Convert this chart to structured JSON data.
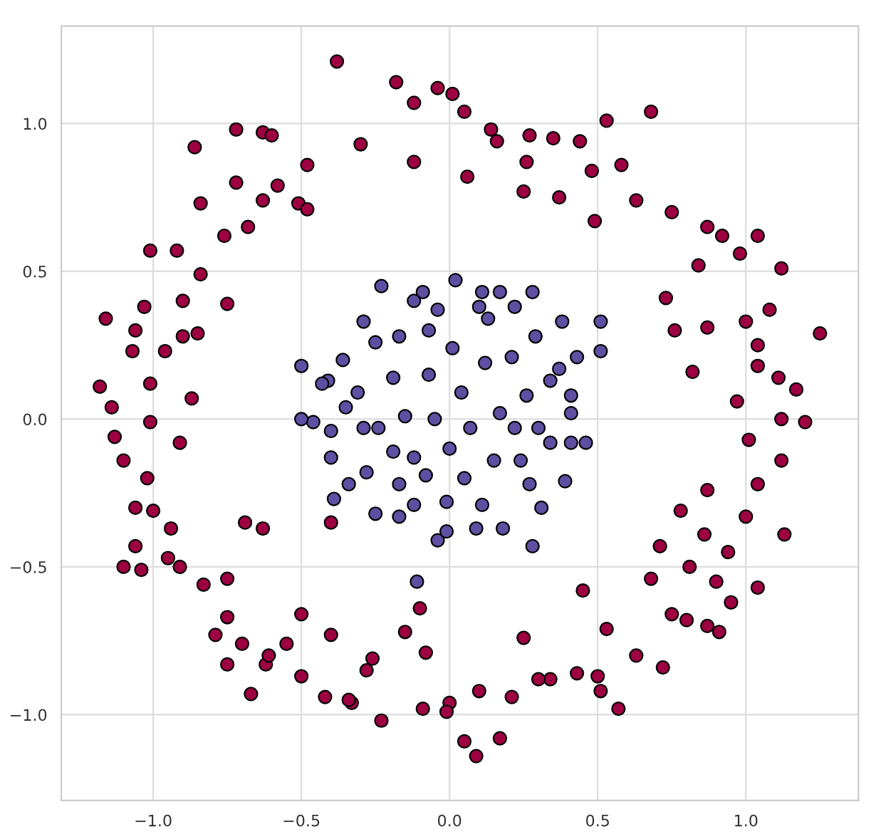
{
  "chart_data": {
    "type": "scatter",
    "xlim": [
      -1.31,
      1.38
    ],
    "ylim": [
      -1.29,
      1.33
    ],
    "xticks": [
      {
        "value": -1.0,
        "label": "−1.0"
      },
      {
        "value": -0.5,
        "label": "−0.5"
      },
      {
        "value": 0.0,
        "label": "0.0"
      },
      {
        "value": 0.5,
        "label": "0.5"
      },
      {
        "value": 1.0,
        "label": "1.0"
      }
    ],
    "yticks": [
      {
        "value": -1.0,
        "label": "−1.0"
      },
      {
        "value": -0.5,
        "label": "−0.5"
      },
      {
        "value": 0.0,
        "label": "0.0"
      },
      {
        "value": 0.5,
        "label": "0.5"
      },
      {
        "value": 1.0,
        "label": "1.0"
      }
    ],
    "grid": true,
    "marker": "circle",
    "series": [
      {
        "color": "#9e0142",
        "x": [
          -0.38,
          -0.18,
          -0.12,
          -0.86,
          -0.72,
          -0.63,
          -0.6,
          -0.04,
          0.01,
          0.05,
          0.14,
          0.16,
          0.27,
          0.35,
          0.44,
          0.53,
          0.68,
          0.58,
          0.48,
          0.26,
          0.06,
          -0.12,
          -0.3,
          -0.48,
          -0.58,
          -0.72,
          -0.84,
          -0.92,
          -1.01,
          -1.03,
          -1.06,
          -1.07,
          -1.16,
          -1.18,
          -1.14,
          -1.13,
          -1.1,
          -1.06,
          -1.06,
          -1.04,
          -1.1,
          -0.95,
          -0.94,
          -1.0,
          -1.02,
          -1.01,
          -1.01,
          -0.96,
          -0.9,
          -0.9,
          -0.84,
          -0.76,
          -0.68,
          -0.63,
          -0.51,
          -0.48,
          -0.75,
          -0.85,
          -0.91,
          -0.87,
          -0.91,
          -0.83,
          -0.75,
          -0.79,
          -0.75,
          -0.67,
          -0.62,
          -0.55,
          -0.5,
          -0.42,
          -0.33,
          -0.28,
          -0.23,
          -0.09,
          0.0,
          0.05,
          0.09,
          0.17,
          0.21,
          0.25,
          0.34,
          0.43,
          0.51,
          0.57,
          0.63,
          0.72,
          0.75,
          0.8,
          0.87,
          0.91,
          0.95,
          1.04,
          1.13,
          0.94,
          0.86,
          0.81,
          0.87,
          1.0,
          1.04,
          1.01,
          1.12,
          1.12,
          1.2,
          1.17,
          1.11,
          1.04,
          0.97,
          1.04,
          1.0,
          1.08,
          1.12,
          1.04,
          0.98,
          0.92,
          0.84,
          0.73,
          0.76,
          0.82,
          0.87,
          1.25,
          0.87,
          0.75,
          0.63,
          0.49,
          0.37,
          0.25,
          -0.4,
          -0.63,
          -0.69,
          -0.75,
          -0.01,
          -0.08,
          -0.15,
          -0.4,
          -0.5,
          0.68,
          0.71,
          0.78,
          0.5,
          0.9,
          0.53,
          0.45,
          0.3,
          0.1,
          -0.26,
          -0.34,
          -0.61,
          -0.7,
          -0.1
        ],
        "values": [
          1.21,
          1.14,
          1.07,
          0.92,
          0.98,
          0.97,
          0.96,
          1.12,
          1.1,
          1.04,
          0.98,
          0.94,
          0.96,
          0.95,
          0.94,
          1.01,
          1.04,
          0.86,
          0.84,
          0.87,
          0.82,
          0.87,
          0.93,
          0.86,
          0.79,
          0.8,
          0.73,
          0.57,
          0.57,
          0.38,
          0.3,
          0.23,
          0.34,
          0.11,
          0.04,
          -0.06,
          -0.14,
          -0.3,
          -0.43,
          -0.51,
          -0.5,
          -0.47,
          -0.37,
          -0.31,
          -0.2,
          -0.01,
          0.12,
          0.23,
          0.28,
          0.4,
          0.49,
          0.62,
          0.65,
          0.74,
          0.73,
          0.71,
          0.39,
          0.29,
          -0.08,
          0.07,
          -0.5,
          -0.56,
          -0.54,
          -0.73,
          -0.83,
          -0.93,
          -0.83,
          -0.76,
          -0.87,
          -0.94,
          -0.96,
          -0.85,
          -1.02,
          -0.98,
          -0.96,
          -1.09,
          -1.14,
          -1.08,
          -0.94,
          -0.74,
          -0.88,
          -0.86,
          -0.92,
          -0.98,
          -0.8,
          -0.84,
          -0.66,
          -0.68,
          -0.7,
          -0.72,
          -0.62,
          -0.57,
          -0.39,
          -0.45,
          -0.39,
          -0.5,
          -0.24,
          -0.33,
          -0.22,
          -0.07,
          -0.14,
          0.0,
          -0.01,
          0.1,
          0.14,
          0.18,
          0.06,
          0.25,
          0.33,
          0.37,
          0.51,
          0.62,
          0.56,
          0.62,
          0.52,
          0.41,
          0.3,
          0.16,
          0.31,
          0.29,
          0.65,
          0.7,
          0.74,
          0.67,
          0.75,
          0.77,
          -0.35,
          -0.37,
          -0.35,
          -0.67,
          -0.99,
          -0.79,
          -0.72,
          -0.73,
          -0.66,
          -0.54,
          -0.43,
          -0.31,
          -0.87,
          -0.55,
          -0.71,
          -0.58,
          -0.88,
          -0.92,
          -0.81,
          -0.95,
          -0.8,
          -0.76,
          -0.64
        ]
      },
      {
        "color": "#5e4fa2",
        "x": [
          0.02,
          0.11,
          0.17,
          -0.09,
          -0.23,
          -0.36,
          -0.41,
          -0.46,
          -0.5,
          -0.5,
          -0.4,
          -0.39,
          -0.25,
          -0.17,
          -0.04,
          -0.01,
          0.09,
          0.18,
          0.28,
          0.31,
          0.39,
          0.41,
          0.41,
          0.37,
          0.41,
          0.51,
          0.51,
          0.46,
          0.38,
          0.28,
          0.13,
          -0.07,
          -0.17,
          -0.25,
          -0.31,
          -0.29,
          -0.28,
          -0.19,
          -0.15,
          -0.07,
          0.01,
          0.12,
          0.21,
          0.29,
          0.26,
          0.22,
          0.15,
          0.05,
          -0.08,
          -0.17,
          -0.24,
          -0.05,
          0.07,
          0.17,
          0.24,
          0.34,
          0.27,
          0.11,
          -0.01,
          -0.12,
          -0.34,
          -0.4,
          -0.19,
          0.04,
          0.1,
          -0.12,
          -0.04,
          0.34,
          0.3,
          0.43,
          -0.12,
          0.0,
          -0.29,
          0.22,
          -0.35,
          -0.43,
          -0.11
        ],
        "values": [
          0.47,
          0.43,
          0.43,
          0.43,
          0.45,
          0.2,
          0.13,
          -0.01,
          0.0,
          0.18,
          -0.13,
          -0.27,
          -0.32,
          -0.33,
          -0.41,
          -0.38,
          -0.37,
          -0.37,
          -0.43,
          -0.3,
          -0.21,
          -0.08,
          0.08,
          0.17,
          0.02,
          0.33,
          0.23,
          -0.08,
          0.33,
          0.43,
          0.34,
          0.3,
          0.28,
          0.26,
          0.09,
          -0.03,
          -0.18,
          -0.11,
          0.01,
          0.15,
          0.24,
          0.19,
          0.21,
          0.28,
          0.08,
          -0.03,
          -0.14,
          -0.2,
          -0.19,
          -0.22,
          -0.03,
          0.0,
          -0.03,
          0.02,
          -0.14,
          -0.08,
          -0.22,
          -0.29,
          -0.28,
          -0.29,
          -0.22,
          -0.04,
          0.14,
          0.09,
          0.38,
          0.4,
          0.37,
          0.13,
          -0.03,
          0.21,
          -0.13,
          -0.1,
          0.33,
          0.38,
          0.04,
          0.12,
          -0.55
        ]
      }
    ]
  }
}
